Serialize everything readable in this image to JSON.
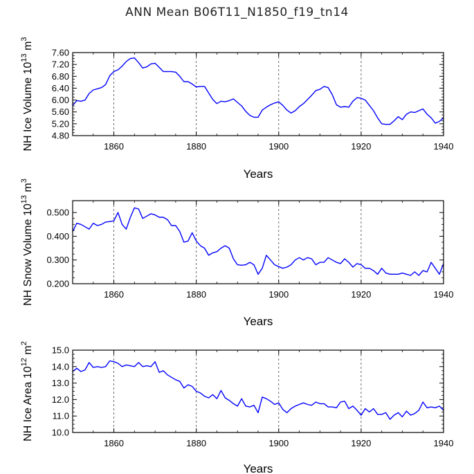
{
  "title": "ANN Mean B06T11_N1850_f19_tn14",
  "chart_data": [
    {
      "type": "line",
      "ylabel": "NH Ice Volume 10",
      "ylabel_sup": "13",
      "ylabel_unit": "m",
      "ylabel_unit_sup": "3",
      "xlabel": "Years",
      "xlim": [
        1850,
        1940
      ],
      "ylim": [
        4.8,
        7.6
      ],
      "yticks": [
        4.8,
        5.2,
        5.6,
        6.0,
        6.4,
        6.8,
        7.2,
        7.6
      ],
      "yticklabels": [
        "4.80",
        "5.20",
        "5.60",
        "6.00",
        "6.40",
        "6.80",
        "7.20",
        "7.60"
      ],
      "xticks": [
        1860,
        1880,
        1900,
        1920,
        1940
      ],
      "xticklabels": [
        "1860",
        "1880",
        "1900",
        "1920",
        "1940"
      ],
      "grid_x": "dashed vertical lines at 1860, 1880, 1900, 1920",
      "series_color": "#0000ff",
      "x": [
        1850,
        1851,
        1852,
        1853,
        1854,
        1855,
        1856,
        1857,
        1858,
        1859,
        1860,
        1861,
        1862,
        1863,
        1864,
        1865,
        1866,
        1867,
        1868,
        1869,
        1870,
        1871,
        1872,
        1873,
        1874,
        1875,
        1876,
        1877,
        1878,
        1879,
        1880,
        1881,
        1882,
        1883,
        1884,
        1885,
        1886,
        1887,
        1888,
        1889,
        1890,
        1891,
        1892,
        1893,
        1894,
        1895,
        1896,
        1897,
        1898,
        1899,
        1900,
        1901,
        1902,
        1903,
        1904,
        1905,
        1906,
        1907,
        1908,
        1909,
        1910,
        1911,
        1912,
        1913,
        1914,
        1915,
        1916,
        1917,
        1918,
        1919,
        1920,
        1921,
        1922,
        1923,
        1924,
        1925,
        1926,
        1927,
        1928,
        1929,
        1930,
        1931,
        1932,
        1933,
        1934,
        1935,
        1936,
        1937,
        1938,
        1939,
        1940
      ],
      "values": [
        5.82,
        5.98,
        5.96,
        6.0,
        6.22,
        6.34,
        6.38,
        6.42,
        6.52,
        6.82,
        6.96,
        7.02,
        7.14,
        7.3,
        7.4,
        7.42,
        7.26,
        7.08,
        7.12,
        7.22,
        7.24,
        7.1,
        6.96,
        6.96,
        6.96,
        6.94,
        6.8,
        6.62,
        6.62,
        6.54,
        6.44,
        6.46,
        6.46,
        6.24,
        6.02,
        5.88,
        5.96,
        5.94,
        5.98,
        6.04,
        5.92,
        5.8,
        5.62,
        5.48,
        5.42,
        5.42,
        5.66,
        5.76,
        5.84,
        5.9,
        5.94,
        5.82,
        5.66,
        5.56,
        5.64,
        5.78,
        5.88,
        6.02,
        6.16,
        6.32,
        6.36,
        6.46,
        6.42,
        6.18,
        5.84,
        5.76,
        5.78,
        5.76,
        5.96,
        6.08,
        6.06,
        6.0,
        5.82,
        5.64,
        5.4,
        5.2,
        5.18,
        5.18,
        5.3,
        5.44,
        5.34,
        5.52,
        5.6,
        5.58,
        5.64,
        5.7,
        5.52,
        5.4,
        5.22,
        5.28,
        5.4
      ]
    },
    {
      "type": "line",
      "ylabel": "NH Snow Volume 10",
      "ylabel_sup": "13",
      "ylabel_unit": "m",
      "ylabel_unit_sup": "3",
      "xlabel": "Years",
      "xlim": [
        1850,
        1940
      ],
      "ylim": [
        0.2,
        0.55
      ],
      "yticks": [
        0.2,
        0.3,
        0.4,
        0.5
      ],
      "yticklabels": [
        "0.200",
        "0.300",
        "0.400",
        "0.500"
      ],
      "xticks": [
        1860,
        1880,
        1900,
        1920,
        1940
      ],
      "xticklabels": [
        "1860",
        "1880",
        "1900",
        "1920",
        "1940"
      ],
      "grid_x": "dashed vertical lines at 1860, 1880, 1900, 1920",
      "series_color": "#0000ff",
      "x": [
        1850,
        1851,
        1852,
        1853,
        1854,
        1855,
        1856,
        1857,
        1858,
        1859,
        1860,
        1861,
        1862,
        1863,
        1864,
        1865,
        1866,
        1867,
        1868,
        1869,
        1870,
        1871,
        1872,
        1873,
        1874,
        1875,
        1876,
        1877,
        1878,
        1879,
        1880,
        1881,
        1882,
        1883,
        1884,
        1885,
        1886,
        1887,
        1888,
        1889,
        1890,
        1891,
        1892,
        1893,
        1894,
        1895,
        1896,
        1897,
        1898,
        1899,
        1900,
        1901,
        1902,
        1903,
        1904,
        1905,
        1906,
        1907,
        1908,
        1909,
        1910,
        1911,
        1912,
        1913,
        1914,
        1915,
        1916,
        1917,
        1918,
        1919,
        1920,
        1921,
        1922,
        1923,
        1924,
        1925,
        1926,
        1927,
        1928,
        1929,
        1930,
        1931,
        1932,
        1933,
        1934,
        1935,
        1936,
        1937,
        1938,
        1939,
        1940
      ],
      "values": [
        0.42,
        0.455,
        0.45,
        0.44,
        0.43,
        0.455,
        0.445,
        0.45,
        0.46,
        0.462,
        0.465,
        0.5,
        0.45,
        0.43,
        0.48,
        0.52,
        0.515,
        0.475,
        0.485,
        0.495,
        0.49,
        0.48,
        0.48,
        0.47,
        0.445,
        0.445,
        0.42,
        0.375,
        0.38,
        0.415,
        0.38,
        0.36,
        0.35,
        0.32,
        0.33,
        0.335,
        0.35,
        0.36,
        0.35,
        0.305,
        0.28,
        0.278,
        0.28,
        0.29,
        0.28,
        0.24,
        0.265,
        0.32,
        0.3,
        0.28,
        0.272,
        0.265,
        0.27,
        0.28,
        0.3,
        0.31,
        0.3,
        0.31,
        0.305,
        0.28,
        0.29,
        0.29,
        0.31,
        0.3,
        0.29,
        0.285,
        0.305,
        0.29,
        0.27,
        0.285,
        0.28,
        0.265,
        0.265,
        0.255,
        0.24,
        0.265,
        0.245,
        0.24,
        0.24,
        0.24,
        0.245,
        0.24,
        0.235,
        0.25,
        0.235,
        0.255,
        0.25,
        0.29,
        0.265,
        0.24,
        0.285
      ]
    },
    {
      "type": "line",
      "ylabel": "NH Ice Area 10",
      "ylabel_sup": "12",
      "ylabel_unit": "m",
      "ylabel_unit_sup": "2",
      "xlabel": "Years",
      "xlim": [
        1850,
        1940
      ],
      "ylim": [
        10.0,
        15.0
      ],
      "yticks": [
        10.0,
        11.0,
        12.0,
        13.0,
        14.0,
        15.0
      ],
      "yticklabels": [
        "10.0",
        "11.0",
        "12.0",
        "13.0",
        "14.0",
        "15.0"
      ],
      "xticks": [
        1860,
        1880,
        1900,
        1920,
        1940
      ],
      "xticklabels": [
        "1860",
        "1880",
        "1900",
        "1920",
        "1940"
      ],
      "grid_x": "dashed vertical lines at 1860, 1880, 1900, 1920",
      "series_color": "#0000ff",
      "x": [
        1850,
        1851,
        1852,
        1853,
        1854,
        1855,
        1856,
        1857,
        1858,
        1859,
        1860,
        1861,
        1862,
        1863,
        1864,
        1865,
        1866,
        1867,
        1868,
        1869,
        1870,
        1871,
        1872,
        1873,
        1874,
        1875,
        1876,
        1877,
        1878,
        1879,
        1880,
        1881,
        1882,
        1883,
        1884,
        1885,
        1886,
        1887,
        1888,
        1889,
        1890,
        1891,
        1892,
        1893,
        1894,
        1895,
        1896,
        1897,
        1898,
        1899,
        1900,
        1901,
        1902,
        1903,
        1904,
        1905,
        1906,
        1907,
        1908,
        1909,
        1910,
        1911,
        1912,
        1913,
        1914,
        1915,
        1916,
        1917,
        1918,
        1919,
        1920,
        1921,
        1922,
        1923,
        1924,
        1925,
        1926,
        1927,
        1928,
        1929,
        1930,
        1931,
        1932,
        1933,
        1934,
        1935,
        1936,
        1937,
        1938,
        1939,
        1940
      ],
      "values": [
        13.7,
        13.9,
        13.7,
        13.8,
        14.25,
        13.95,
        14.0,
        13.95,
        14.0,
        14.35,
        14.3,
        14.2,
        14.0,
        14.1,
        14.05,
        14.0,
        14.25,
        14.0,
        14.05,
        14.0,
        14.3,
        13.65,
        13.75,
        13.5,
        13.35,
        13.2,
        13.1,
        12.7,
        12.9,
        12.8,
        12.5,
        12.4,
        12.2,
        12.1,
        12.3,
        12.05,
        12.55,
        12.1,
        11.95,
        11.75,
        11.6,
        12.05,
        11.6,
        11.55,
        11.65,
        11.2,
        12.15,
        12.05,
        11.9,
        11.7,
        11.8,
        11.4,
        11.2,
        11.45,
        11.6,
        11.7,
        11.8,
        11.7,
        11.65,
        11.85,
        11.75,
        11.75,
        11.55,
        11.55,
        11.5,
        11.85,
        11.9,
        11.45,
        11.6,
        11.35,
        11.05,
        11.45,
        11.25,
        11.45,
        11.1,
        11.1,
        11.2,
        10.8,
        11.05,
        11.2,
        10.95,
        11.3,
        11.05,
        11.15,
        11.35,
        11.85,
        11.5,
        11.55,
        11.5,
        11.6,
        11.35
      ]
    }
  ]
}
